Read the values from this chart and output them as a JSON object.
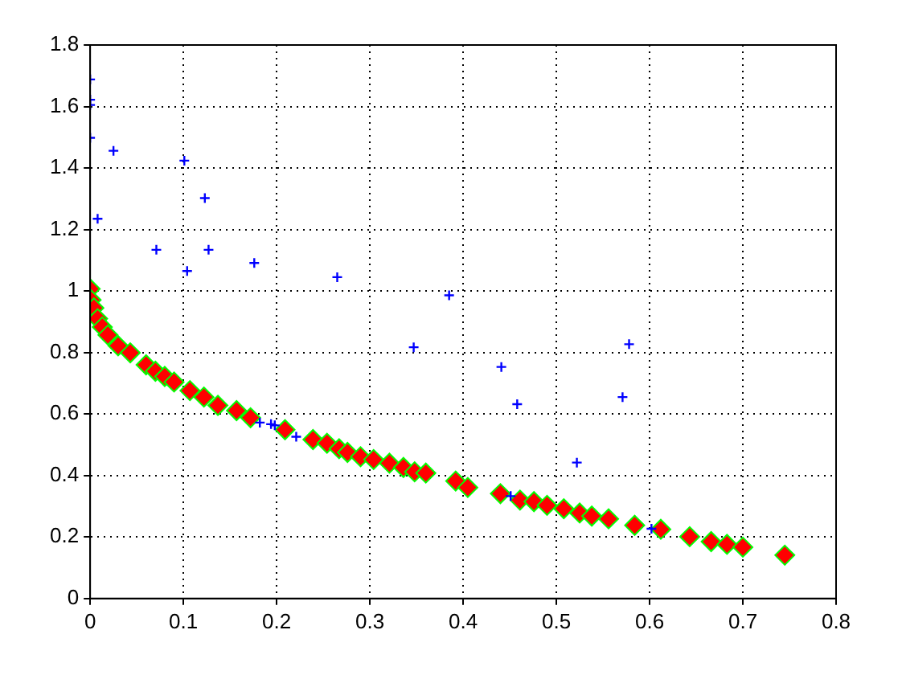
{
  "chart_data": {
    "type": "scatter",
    "xlim": [
      0,
      0.8
    ],
    "ylim": [
      0,
      1.8
    ],
    "xticks": [
      0,
      0.1,
      0.2,
      0.3,
      0.4,
      0.5,
      0.6,
      0.7,
      0.8
    ],
    "yticks": [
      0,
      0.2,
      0.4,
      0.6,
      0.8,
      1,
      1.2,
      1.4,
      1.6,
      1.8
    ],
    "grid": true,
    "legend": false,
    "series": [
      {
        "color": "#0000ff",
        "marker": "cross",
        "x": [
          0,
          0,
          0,
          0,
          0.025,
          0.008,
          0.071,
          0.101,
          0.123,
          0.104,
          0.127,
          0.176,
          0.265,
          0.385,
          0.347,
          0.182,
          0.194,
          0.198,
          0.221,
          0.441,
          0.458,
          0.578,
          0.571,
          0.522,
          0.451,
          0.602
        ],
        "values": [
          1.688,
          1.622,
          1.605,
          1.498,
          1.456,
          1.235,
          1.134,
          1.424,
          1.302,
          1.065,
          1.134,
          1.091,
          1.045,
          0.986,
          0.817,
          0.572,
          0.567,
          0.563,
          0.526,
          0.753,
          0.632,
          0.827,
          0.655,
          0.442,
          0.333,
          0.227
        ]
      },
      {
        "color": "#ff0000",
        "marker": "diamond",
        "x": [
          0,
          0.001,
          0.004,
          0.008,
          0.013,
          0.019,
          0.03,
          0.043,
          0.06,
          0.07,
          0.08,
          0.09,
          0.107,
          0.122,
          0.137,
          0.157,
          0.172,
          0.209,
          0.239,
          0.254,
          0.267,
          0.276,
          0.29,
          0.304,
          0.321,
          0.336,
          0.348,
          0.36,
          0.392,
          0.405,
          0.44,
          0.461,
          0.476,
          0.49,
          0.508,
          0.525,
          0.538,
          0.556,
          0.584,
          0.612,
          0.643,
          0.666,
          0.683,
          0.7,
          0.745
        ],
        "values": [
          1.007,
          0.971,
          0.945,
          0.91,
          0.883,
          0.857,
          0.822,
          0.799,
          0.76,
          0.739,
          0.722,
          0.704,
          0.676,
          0.655,
          0.628,
          0.611,
          0.588,
          0.549,
          0.517,
          0.505,
          0.487,
          0.475,
          0.461,
          0.452,
          0.44,
          0.426,
          0.412,
          0.408,
          0.382,
          0.361,
          0.341,
          0.32,
          0.315,
          0.303,
          0.292,
          0.278,
          0.268,
          0.259,
          0.238,
          0.225,
          0.201,
          0.185,
          0.176,
          0.167,
          0.141
        ]
      }
    ]
  }
}
